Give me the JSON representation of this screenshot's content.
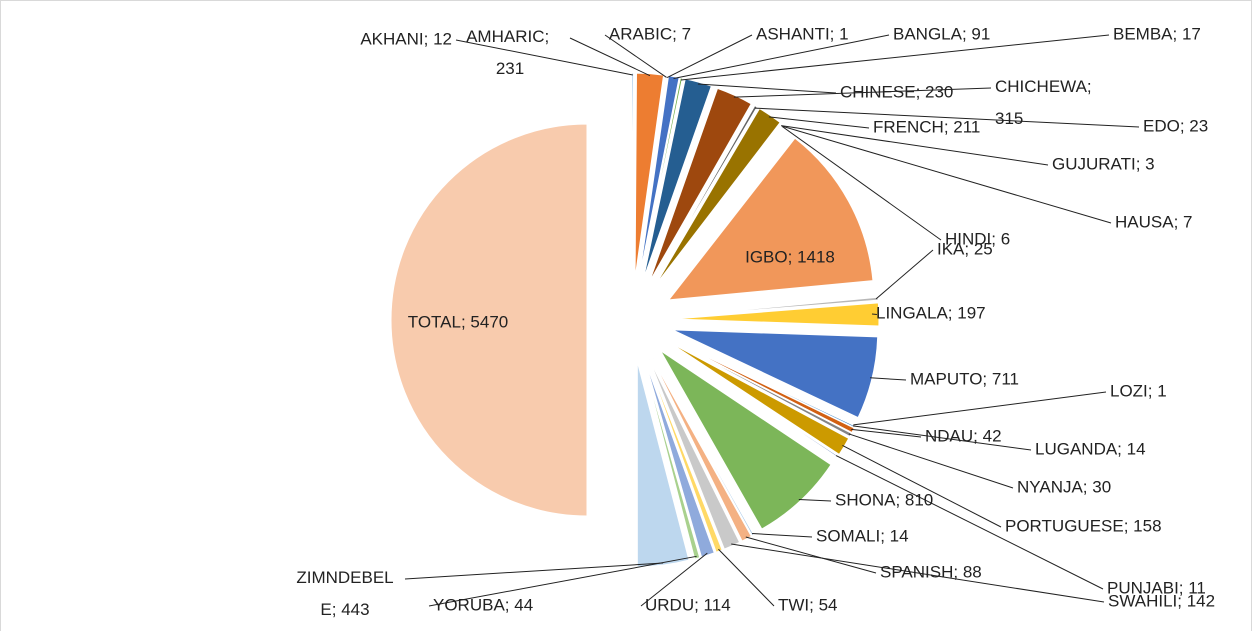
{
  "chart_data": {
    "type": "pie",
    "values": [
      12,
      231,
      7,
      1,
      91,
      17,
      230,
      315,
      23,
      211,
      3,
      7,
      6,
      1418,
      25,
      197,
      711,
      1,
      14,
      42,
      30,
      158,
      11,
      810,
      14,
      88,
      142,
      54,
      114,
      44,
      443,
      5470
    ],
    "value_labels": [
      "AKHANI; 12",
      "AMHARIC; 231",
      "ARABIC; 7",
      "ASHANTI; 1",
      "BANGLA; 91",
      "BEMBA; 17",
      "CHINESE; 230",
      "CHICHEWA; 315",
      "EDO; 23",
      "FRENCH; 211",
      "GUJURATI; 3",
      "HAUSA; 7",
      "HINDI; 6",
      "IGBO; 1418",
      "IKA; 25",
      "LINGALA; 197",
      "MAPUTO; 711",
      "LOZI; 1",
      "LUGANDA; 14",
      "NDAU; 42",
      "NYANJA; 30",
      "PORTUGUESE; 158",
      "PUNJABI; 11",
      "SHONA; 810",
      "SOMALI; 14",
      "SPANISH; 88",
      "SWAHILI; 142",
      "TWI; 54",
      "URDU; 114",
      "YORUBA; 44",
      "ZIMNDEBELE; 443",
      "TOTAL; 5470"
    ],
    "colors": [
      "#5B9BD5",
      "#ED7D31",
      "#A5A5A5",
      "#FFC000",
      "#4472C4",
      "#70AD47",
      "#255E91",
      "#9E480E",
      "#636363",
      "#997300",
      "#264478",
      "#43682B",
      "#7CAFDD",
      "#F1975A",
      "#B7B7B7",
      "#FFCD33",
      "#4472C4",
      "#8CC168",
      "#327DC2",
      "#D26012",
      "#848484",
      "#CC9A00",
      "#335AA1",
      "#7CB659",
      "#9DC3E6",
      "#F4B183",
      "#C9C9C9",
      "#FFD966",
      "#8FAADC",
      "#A9D18E",
      "#BDD7EE",
      "#F8CBAD"
    ]
  }
}
